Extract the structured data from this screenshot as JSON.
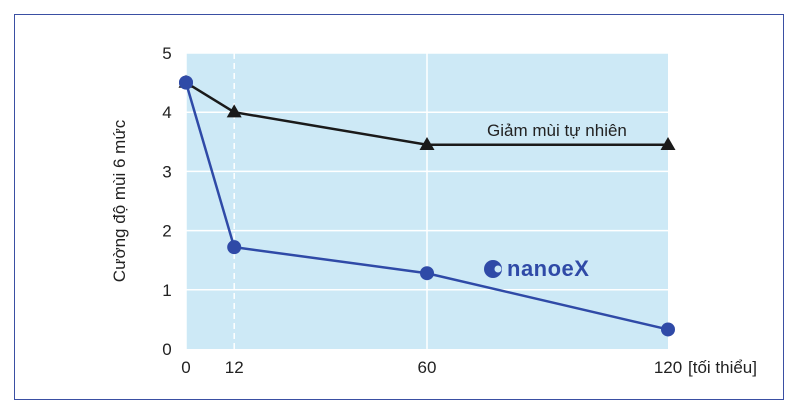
{
  "chart_data": {
    "type": "line",
    "ylabel": "Cường độ mùi 6 mức",
    "x_unit_label": "[tối thiểu]",
    "x": [
      0,
      12,
      60,
      120
    ],
    "x_ticks": [
      "0",
      "12",
      "60",
      "120"
    ],
    "y_ticks": [
      "0",
      "1",
      "2",
      "3",
      "4",
      "5"
    ],
    "xlim": [
      0,
      120
    ],
    "ylim": [
      0,
      5
    ],
    "grid": true,
    "background_color": "#cde9f6",
    "series": [
      {
        "name": "Giảm mùi tự nhiên",
        "values": [
          4.5,
          4.0,
          3.45,
          3.45
        ],
        "color": "#1a1a1a",
        "marker": "triangle"
      },
      {
        "name": "nanoeX",
        "values": [
          4.5,
          1.72,
          1.28,
          0.33
        ],
        "color": "#2f4aa7",
        "marker": "circle"
      }
    ]
  },
  "brand": {
    "text": "nanoeX",
    "icon": "nanoe-dot-icon"
  }
}
